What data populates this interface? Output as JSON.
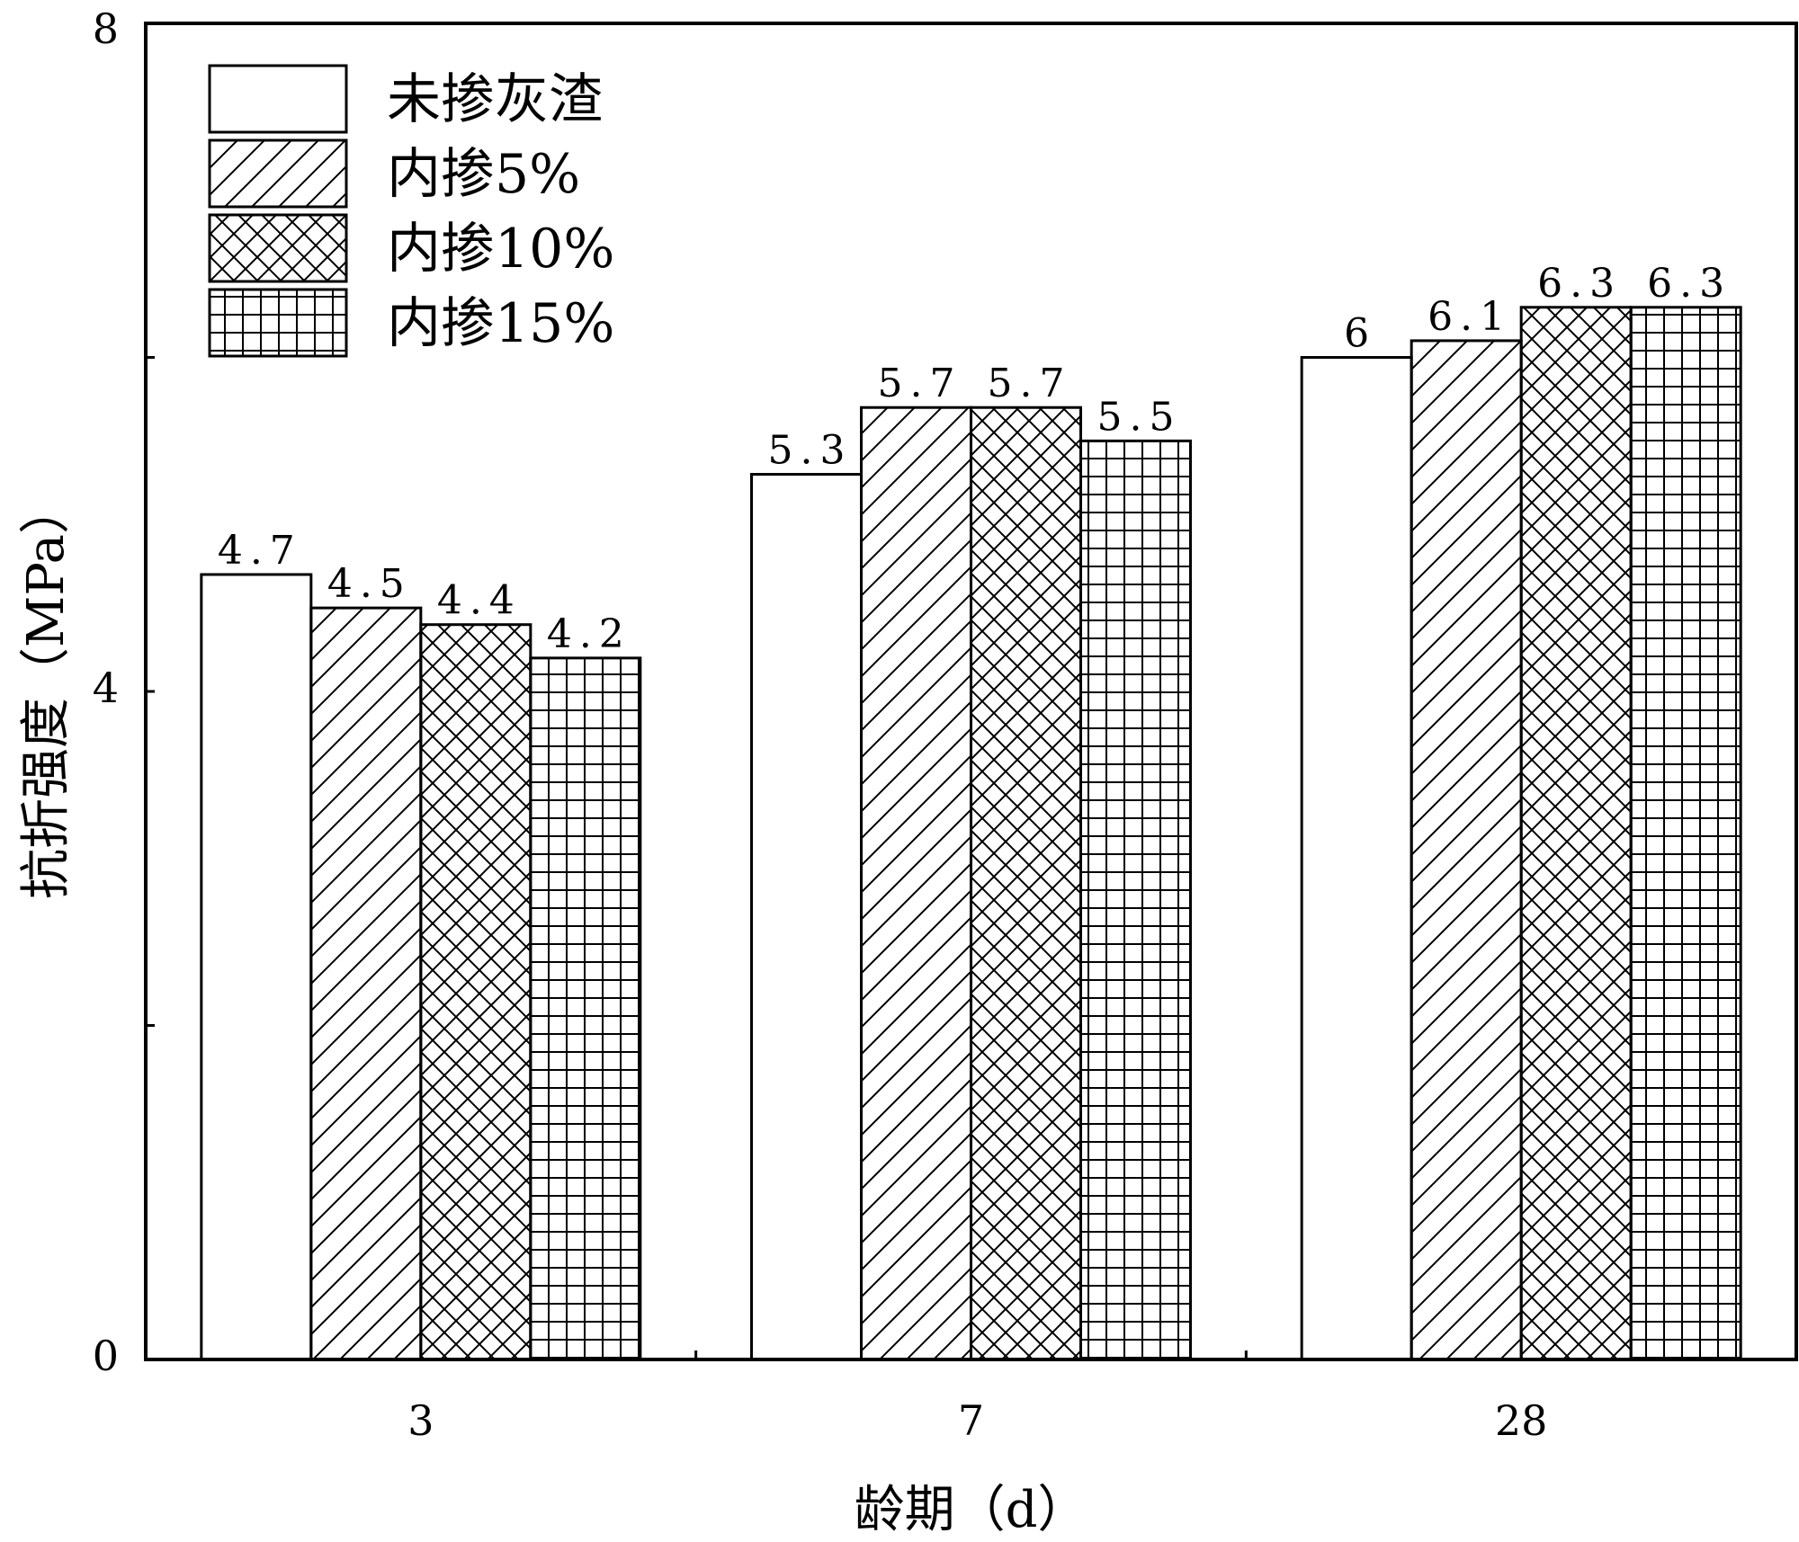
{
  "chart_data": {
    "type": "bar",
    "title": "",
    "xlabel": "龄期（d）",
    "ylabel": "抗折强度（MPa）",
    "categories": [
      "3",
      "7",
      "28"
    ],
    "yticks": [
      "0",
      "4",
      "8"
    ],
    "ylim": [
      0,
      8
    ],
    "grid": false,
    "legend_position": "top-left",
    "series": [
      {
        "name": "未掺灰渣",
        "pattern": "blank",
        "values": [
          4.7,
          5.3,
          6
        ],
        "labels": [
          "4.7",
          "5.3",
          "6"
        ]
      },
      {
        "name": "内掺5%",
        "pattern": "diagonal",
        "values": [
          4.5,
          5.7,
          6.1
        ],
        "labels": [
          "4.5",
          "5.7",
          "6.1"
        ]
      },
      {
        "name": "内掺10%",
        "pattern": "crosshatch",
        "values": [
          4.4,
          5.7,
          6.3
        ],
        "labels": [
          "4.4",
          "5.7",
          "6.3"
        ]
      },
      {
        "name": "内掺15%",
        "pattern": "grid",
        "values": [
          4.2,
          5.5,
          6.3
        ],
        "labels": [
          "4.2",
          "5.5",
          "6.3"
        ]
      }
    ]
  }
}
